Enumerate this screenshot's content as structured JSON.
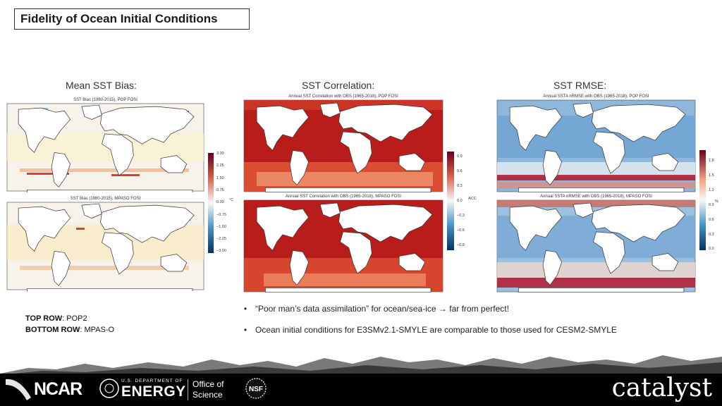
{
  "slide": {
    "title": "Fidelity of Ocean Initial Conditions",
    "columns": [
      {
        "heading": "Mean SST Bias:"
      },
      {
        "heading": "SST Correlation:"
      },
      {
        "heading": "SST RMSE:"
      }
    ],
    "panels": {
      "bias_top_title": "SST Bias (1980-2015), POP FOSI",
      "bias_bottom_title": "SST Bias (1980-2015), MPASO FOSI",
      "corr_top_title": "Annual SST Correlation with OBS (1965-2018), POP FOSI",
      "corr_bottom_title": "Annual SST Correlation with OBS (1965-2018), MPASO FOSI",
      "rmse_top_title": "Annual SSTA nRMSE with OBS (1965-2018), POP FOSI",
      "rmse_bottom_title": "Annual SSTA nRMSE with OBS (1965-2018), MPASO FOSI"
    },
    "colorbars": {
      "bias": {
        "unit": "°C",
        "ticks": [
          "3.00",
          "2.25",
          "1.50",
          "0.75",
          "0.00",
          "−0.75",
          "−1.50",
          "−2.25",
          "−3.00"
        ]
      },
      "corr": {
        "unit": "ACC",
        "ticks": [
          "0.9",
          "0.6",
          "0.3",
          "0.0",
          "−0.3",
          "−0.6",
          "−0.9"
        ]
      },
      "rmse": {
        "unit": "%",
        "ticks": [
          "1.8",
          "1.5",
          "1.2",
          "0.9",
          "0.6",
          "0.3",
          "0.0"
        ]
      }
    },
    "rows_legend": {
      "top_label": "TOP ROW",
      "top_value": ":  POP2",
      "bottom_label": "BOTTOM ROW",
      "bottom_value": ":  MPAS-O"
    },
    "bullets": [
      "“Poor man’s data assimilation” for ocean/sea-ice → far from perfect!",
      "Ocean initial conditions for E3SMv2.1-SMYLE are comparable to those used for CESM2-SMYLE"
    ],
    "footer": {
      "ncar": "NCAR",
      "doe_small": "U.S. DEPARTMENT OF",
      "doe_big": "ENERGY",
      "office_line1": "Office of",
      "office_line2": "Science",
      "nsf": "NSF",
      "catalyst": "catalyst"
    }
  }
}
